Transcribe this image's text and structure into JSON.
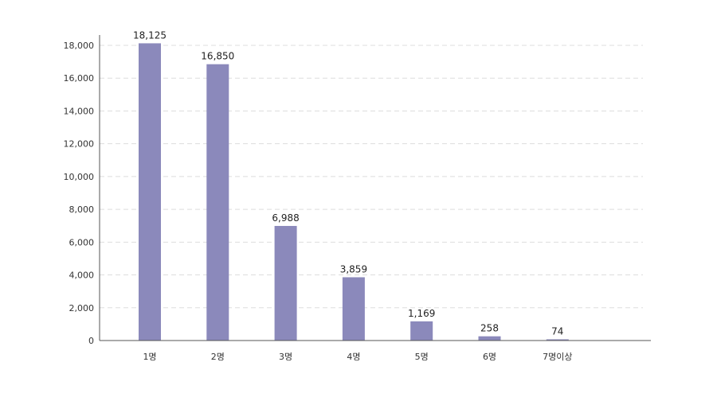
{
  "chart_data": {
    "type": "bar",
    "categories": [
      "1명",
      "2명",
      "3명",
      "4명",
      "5명",
      "6명",
      "7명이상"
    ],
    "values": [
      18125,
      16850,
      6988,
      3859,
      1169,
      258,
      74
    ],
    "value_labels": [
      "18,125",
      "16,850",
      "6,988",
      "3,859",
      "1,169",
      "258",
      "74"
    ],
    "title": "",
    "xlabel": "",
    "ylabel": "",
    "ylim": [
      0,
      18000
    ],
    "yticks": [
      0,
      2000,
      4000,
      6000,
      8000,
      10000,
      12000,
      14000,
      16000,
      18000
    ],
    "ytick_labels": [
      "0",
      "2,000",
      "4,000",
      "6,000",
      "8,000",
      "10,000",
      "12,000",
      "14,000",
      "16,000",
      "18,000"
    ],
    "grid": true,
    "bar_color": "#8b89bb",
    "grid_color": "#dddddd",
    "axis_color": "#555555"
  }
}
